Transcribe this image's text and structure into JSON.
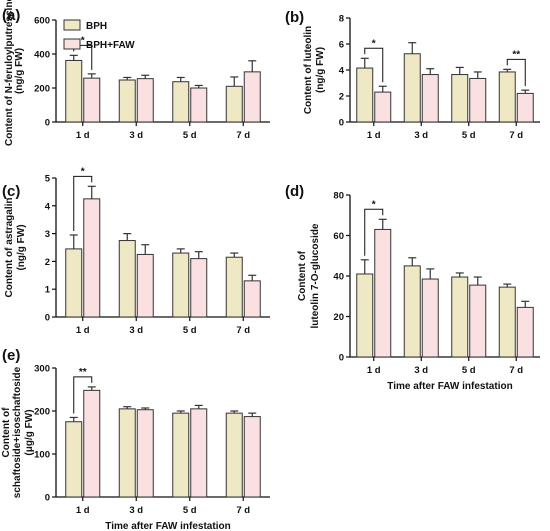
{
  "colors": {
    "bph": "#efe8c4",
    "bph_faw": "#fbe0e2",
    "stroke": "#333333"
  },
  "legend": [
    "BPH",
    "BPH+FAW"
  ],
  "chart_data": [
    {
      "panel": "(a)",
      "type": "bar",
      "ylabel": [
        "Content of N-feruloylputrescine",
        "(ng/g FW)"
      ],
      "xlabel": "",
      "ylim": [
        0,
        600
      ],
      "yticks": [
        0,
        200,
        400,
        600
      ],
      "categories": [
        "1 d",
        "3 d",
        "5 d",
        "7 d"
      ],
      "series": [
        {
          "name": "BPH",
          "values": [
            362,
            247,
            237,
            210
          ],
          "errors": [
            30,
            15,
            25,
            55
          ]
        },
        {
          "name": "BPH+FAW",
          "values": [
            258,
            255,
            200,
            295
          ],
          "errors": [
            25,
            20,
            15,
            65
          ]
        }
      ],
      "significance": [
        {
          "category_index": 0,
          "label": "*"
        }
      ]
    },
    {
      "panel": "(b)",
      "type": "bar",
      "ylabel": [
        "Content of luteolin",
        "(ng/g FW)"
      ],
      "xlabel": "",
      "ylim": [
        0,
        8
      ],
      "yticks": [
        0,
        2,
        4,
        6,
        8
      ],
      "categories": [
        "1 d",
        "3 d",
        "5 d",
        "7 d"
      ],
      "series": [
        {
          "name": "BPH",
          "values": [
            4.15,
            5.25,
            3.65,
            3.85
          ],
          "errors": [
            0.75,
            0.85,
            0.55,
            0.2
          ]
        },
        {
          "name": "BPH+FAW",
          "values": [
            2.3,
            3.65,
            3.35,
            2.2
          ],
          "errors": [
            0.45,
            0.45,
            0.5,
            0.25
          ]
        }
      ],
      "significance": [
        {
          "category_index": 0,
          "label": "*"
        },
        {
          "category_index": 3,
          "label": "**"
        }
      ]
    },
    {
      "panel": "(c)",
      "type": "bar",
      "ylabel": [
        "Content of astragalin",
        "(ng/g FW)"
      ],
      "xlabel": "",
      "ylim": [
        0,
        5
      ],
      "yticks": [
        0,
        1,
        2,
        3,
        4,
        5
      ],
      "categories": [
        "1 d",
        "3 d",
        "5 d",
        "7 d"
      ],
      "series": [
        {
          "name": "BPH",
          "values": [
            2.45,
            2.75,
            2.3,
            2.15
          ],
          "errors": [
            0.5,
            0.25,
            0.15,
            0.15
          ]
        },
        {
          "name": "BPH+FAW",
          "values": [
            4.25,
            2.25,
            2.1,
            1.3
          ],
          "errors": [
            0.45,
            0.35,
            0.25,
            0.2
          ]
        }
      ],
      "significance": [
        {
          "category_index": 0,
          "label": "*"
        }
      ]
    },
    {
      "panel": "(d)",
      "type": "bar",
      "ylabel": [
        "Content of",
        "luteolin 7-O-glucoside"
      ],
      "xlabel": "Time after FAW infestation",
      "ylim": [
        0,
        80
      ],
      "yticks": [
        0,
        20,
        40,
        60,
        80
      ],
      "categories": [
        "1 d",
        "3 d",
        "5 d",
        "7 d"
      ],
      "series": [
        {
          "name": "BPH",
          "values": [
            41,
            45,
            39.5,
            34.5
          ],
          "errors": [
            7,
            4,
            2,
            1.5
          ]
        },
        {
          "name": "BPH+FAW",
          "values": [
            63,
            38.5,
            35.5,
            24.5
          ],
          "errors": [
            5,
            5,
            4,
            3
          ]
        }
      ],
      "significance": [
        {
          "category_index": 0,
          "label": "*"
        }
      ]
    },
    {
      "panel": "(e)",
      "type": "bar",
      "ylabel": [
        "Content of",
        "schaftoside+isoschaftoside",
        "(μg/g FW)"
      ],
      "xlabel": "Time after FAW infestation",
      "ylim": [
        0,
        300
      ],
      "yticks": [
        0,
        100,
        200,
        300
      ],
      "categories": [
        "1 d",
        "3 d",
        "5 d",
        "7 d"
      ],
      "series": [
        {
          "name": "BPH",
          "values": [
            175,
            205,
            195,
            195
          ],
          "errors": [
            10,
            5,
            5,
            5
          ]
        },
        {
          "name": "BPH+FAW",
          "values": [
            248,
            203,
            205,
            187
          ],
          "errors": [
            8,
            4,
            8,
            8
          ]
        }
      ],
      "significance": [
        {
          "category_index": 0,
          "label": "**"
        }
      ]
    }
  ]
}
